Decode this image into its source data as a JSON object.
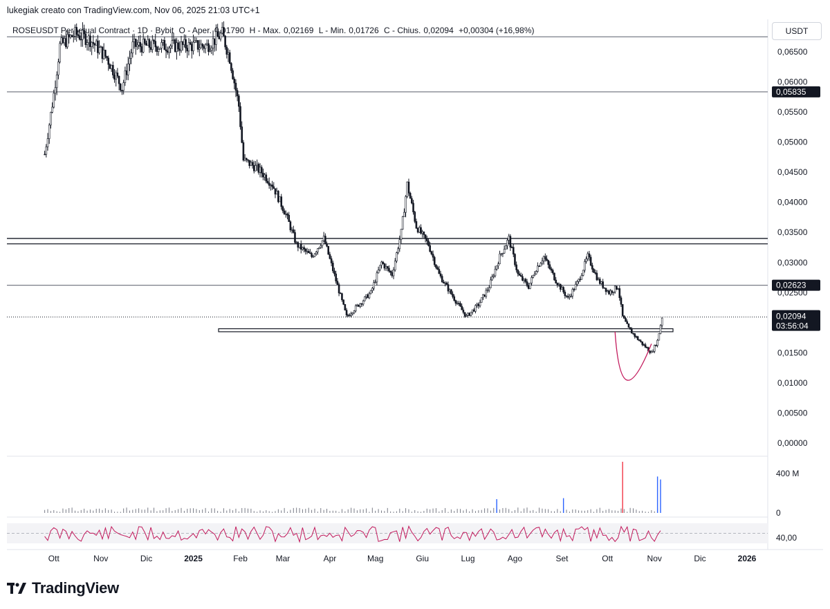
{
  "header": {
    "credit": "lukegiak creato con TradingView.com, Nov 06, 2025 21:03 UTC+1",
    "symbol_line": "ROSEUSDT Perpetual Contract · 1D · Bybit",
    "open_label": "O - Aper.",
    "open_value": "0,01790",
    "high_label": "H - Max.",
    "high_value": "0,02169",
    "low_label": "L - Min.",
    "low_value": "0,01726",
    "close_label": "C - Chius.",
    "close_value": "0,02094",
    "change": "+0,00304 (+16,98%)",
    "currency": "USDT"
  },
  "brand": {
    "name": "TradingView",
    "logo_icon": "tradingview-logo-icon"
  },
  "chart_data": {
    "type": "candlestick",
    "price_axis": {
      "ticks": [
        "0,06500",
        "0,06000",
        "0,05500",
        "0,05000",
        "0,04500",
        "0,04000",
        "0,03500",
        "0,03000",
        "0,02500",
        "0,01500",
        "0,01000",
        "0,00500",
        "0,00000"
      ],
      "tick_values": [
        0.065,
        0.06,
        0.055,
        0.05,
        0.045,
        0.04,
        0.035,
        0.03,
        0.025,
        0.015,
        0.01,
        0.005,
        0.0
      ],
      "ylim": [
        0.0,
        0.068
      ]
    },
    "time_axis": {
      "labels": [
        "Ott",
        "Nov",
        "Dic",
        "2025",
        "Feb",
        "Mar",
        "Apr",
        "Mag",
        "Giu",
        "Lug",
        "Ago",
        "Set",
        "Ott",
        "Nov",
        "Dic",
        "2026"
      ],
      "bold": [
        false,
        false,
        false,
        true,
        false,
        false,
        false,
        false,
        false,
        false,
        false,
        false,
        false,
        false,
        false,
        true
      ]
    },
    "horizontal_lines": [
      {
        "price": 0.0675,
        "color": "#787b86"
      },
      {
        "price": 0.05835,
        "color": "#787b86",
        "label": "0,05835"
      },
      {
        "price": 0.034,
        "color": "#131722"
      },
      {
        "price": 0.0331,
        "color": "#131722"
      },
      {
        "price": 0.02623,
        "color": "#787b86",
        "label": "0,02623"
      }
    ],
    "support_box": {
      "price_top": 0.019,
      "price_bottom": 0.0185
    },
    "current_price": {
      "price": 0.02094,
      "label": "0,02094",
      "countdown": "03:56:04"
    },
    "price_path": [
      [
        "2024-09-25",
        0.048
      ],
      [
        "2024-10-01",
        0.058
      ],
      [
        "2024-10-05",
        0.066
      ],
      [
        "2024-10-15",
        0.068
      ],
      [
        "2024-10-25",
        0.067
      ],
      [
        "2024-11-05",
        0.064
      ],
      [
        "2024-11-15",
        0.059
      ],
      [
        "2024-11-22",
        0.066
      ],
      [
        "2025-01-10",
        0.066
      ],
      [
        "2025-01-20",
        0.068
      ],
      [
        "2025-01-25",
        0.064
      ],
      [
        "2025-01-31",
        0.056
      ],
      [
        "2025-02-03",
        0.047
      ],
      [
        "2025-02-10",
        0.046
      ],
      [
        "2025-02-15",
        0.045
      ],
      [
        "2025-02-22",
        0.043
      ],
      [
        "2025-03-03",
        0.038
      ],
      [
        "2025-03-10",
        0.033
      ],
      [
        "2025-03-20",
        0.031
      ],
      [
        "2025-03-28",
        0.034
      ],
      [
        "2025-04-05",
        0.027
      ],
      [
        "2025-04-12",
        0.021
      ],
      [
        "2025-04-20",
        0.023
      ],
      [
        "2025-04-28",
        0.025
      ],
      [
        "2025-05-05",
        0.03
      ],
      [
        "2025-05-12",
        0.028
      ],
      [
        "2025-05-18",
        0.035
      ],
      [
        "2025-05-22",
        0.043
      ],
      [
        "2025-05-28",
        0.036
      ],
      [
        "2025-06-05",
        0.033
      ],
      [
        "2025-06-12",
        0.028
      ],
      [
        "2025-06-22",
        0.024
      ],
      [
        "2025-06-30",
        0.021
      ],
      [
        "2025-07-08",
        0.023
      ],
      [
        "2025-07-15",
        0.026
      ],
      [
        "2025-07-22",
        0.031
      ],
      [
        "2025-07-28",
        0.034
      ],
      [
        "2025-08-03",
        0.028
      ],
      [
        "2025-08-10",
        0.026
      ],
      [
        "2025-08-15",
        0.029
      ],
      [
        "2025-08-20",
        0.031
      ],
      [
        "2025-08-28",
        0.027
      ],
      [
        "2025-09-05",
        0.024
      ],
      [
        "2025-09-12",
        0.027
      ],
      [
        "2025-09-18",
        0.031
      ],
      [
        "2025-09-25",
        0.027
      ],
      [
        "2025-10-02",
        0.025
      ],
      [
        "2025-10-08",
        0.026
      ],
      [
        "2025-10-11",
        0.021
      ],
      [
        "2025-10-15",
        0.019
      ],
      [
        "2025-10-22",
        0.017
      ],
      [
        "2025-10-30",
        0.015
      ],
      [
        "2025-11-03",
        0.017
      ],
      [
        "2025-11-06",
        0.02094
      ]
    ],
    "volume_axis": {
      "ticks": [
        "400 M",
        "0"
      ]
    },
    "volume_spikes": [
      {
        "date": "2025-10-11",
        "value": 520,
        "color": "#f23645"
      },
      {
        "date": "2025-11-03",
        "value": 370,
        "color": "#2962ff"
      },
      {
        "date": "2025-11-05",
        "value": 340,
        "color": "#2962ff"
      },
      {
        "date": "2025-09-02",
        "value": 150,
        "color": "#2962ff"
      },
      {
        "date": "2025-07-20",
        "value": 140,
        "color": "#2962ff"
      }
    ],
    "rsi": {
      "label": "40,00",
      "color": "#c2185b",
      "band": [
        30,
        70
      ]
    },
    "annotation_curve": {
      "color": "#c2185b",
      "shape": "u-curve",
      "from_date": "2025-10-06",
      "to_date": "2025-10-30",
      "low_price": 0.0095
    }
  }
}
